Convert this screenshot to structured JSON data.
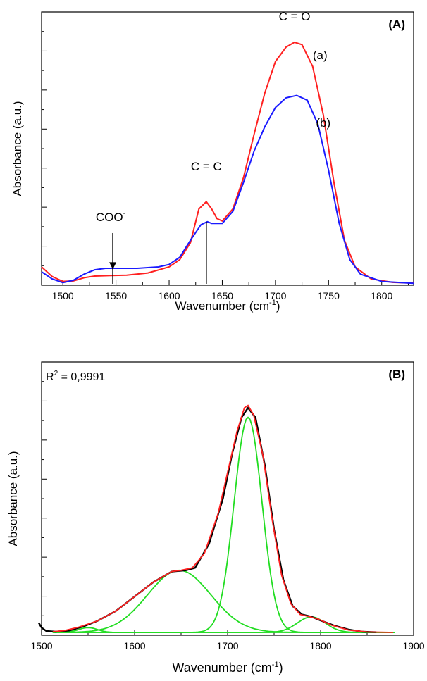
{
  "chart_data": [
    {
      "type": "line",
      "panel_label": "(A)",
      "xlabel": "Wavenumber (cm",
      "xlabel_sup": "-1",
      "xlabel_end": ")",
      "ylabel": "Absorbance (a.u.)",
      "xlim": [
        1480,
        1830
      ],
      "ylim": [
        0,
        1.0
      ],
      "x_ticks": [
        1500,
        1550,
        1600,
        1650,
        1700,
        1750,
        1800
      ],
      "x_tick_labels": [
        "1500",
        "1550",
        "1600",
        "1650",
        "1700",
        "1750",
        "1800"
      ],
      "y_tick_labels": false,
      "grid": false,
      "colors": {
        "a": "#ff2020",
        "b": "#1a1aff"
      },
      "series": [
        {
          "name": "(a)",
          "color": "#ff2020",
          "points": [
            [
              1480,
              0.07
            ],
            [
              1490,
              0.03
            ],
            [
              1500,
              0.01
            ],
            [
              1510,
              0.012
            ],
            [
              1520,
              0.025
            ],
            [
              1530,
              0.032
            ],
            [
              1545,
              0.034
            ],
            [
              1560,
              0.036
            ],
            [
              1580,
              0.045
            ],
            [
              1600,
              0.07
            ],
            [
              1610,
              0.1
            ],
            [
              1620,
              0.17
            ],
            [
              1628,
              0.31
            ],
            [
              1635,
              0.34
            ],
            [
              1640,
              0.31
            ],
            [
              1645,
              0.27
            ],
            [
              1650,
              0.26
            ],
            [
              1660,
              0.31
            ],
            [
              1670,
              0.44
            ],
            [
              1680,
              0.62
            ],
            [
              1690,
              0.79
            ],
            [
              1700,
              0.92
            ],
            [
              1710,
              0.98
            ],
            [
              1718,
              1.0
            ],
            [
              1725,
              0.99
            ],
            [
              1735,
              0.9
            ],
            [
              1745,
              0.7
            ],
            [
              1755,
              0.42
            ],
            [
              1765,
              0.18
            ],
            [
              1775,
              0.07
            ],
            [
              1790,
              0.02
            ],
            [
              1810,
              0.006
            ],
            [
              1830,
              0.003
            ]
          ]
        },
        {
          "name": "(b)",
          "color": "#1a1aff",
          "points": [
            [
              1480,
              0.05
            ],
            [
              1490,
              0.02
            ],
            [
              1500,
              0.005
            ],
            [
              1510,
              0.015
            ],
            [
              1520,
              0.04
            ],
            [
              1530,
              0.058
            ],
            [
              1540,
              0.064
            ],
            [
              1550,
              0.064
            ],
            [
              1570,
              0.064
            ],
            [
              1590,
              0.07
            ],
            [
              1600,
              0.08
            ],
            [
              1610,
              0.11
            ],
            [
              1620,
              0.18
            ],
            [
              1630,
              0.245
            ],
            [
              1636,
              0.257
            ],
            [
              1640,
              0.25
            ],
            [
              1650,
              0.25
            ],
            [
              1660,
              0.3
            ],
            [
              1670,
              0.42
            ],
            [
              1680,
              0.55
            ],
            [
              1690,
              0.65
            ],
            [
              1700,
              0.73
            ],
            [
              1710,
              0.77
            ],
            [
              1720,
              0.78
            ],
            [
              1730,
              0.76
            ],
            [
              1740,
              0.66
            ],
            [
              1750,
              0.47
            ],
            [
              1760,
              0.25
            ],
            [
              1770,
              0.1
            ],
            [
              1780,
              0.04
            ],
            [
              1800,
              0.01
            ],
            [
              1830,
              0.002
            ]
          ]
        }
      ],
      "annotations": [
        {
          "text": "C = O",
          "x": 1718,
          "y": 1.09
        },
        {
          "text": "(a)",
          "x": 1742,
          "y": 0.93
        },
        {
          "text": "(b)",
          "x": 1745,
          "y": 0.65
        },
        {
          "text": "C = C",
          "x": 1635,
          "y": 0.47
        },
        {
          "text": "COO",
          "sup": "-",
          "x": 1545,
          "y": 0.26
        }
      ],
      "markers": [
        {
          "name": "coo-arrow",
          "x": 1547,
          "y_start": 0.21,
          "y_end": 0.06
        },
        {
          "name": "coo-line",
          "x": 1547,
          "y_start": 0.0,
          "y_end": 0.064
        },
        {
          "name": "cc-line",
          "x": 1635,
          "y_start": 0.0,
          "y_end": 0.257
        }
      ]
    },
    {
      "type": "line",
      "panel_label": "(B)",
      "fit_label": "R",
      "fit_label_sup": "2",
      "fit_label_value": " = 0,9991",
      "xlabel": "Wavenumber (cm",
      "xlabel_sup": "-1",
      "xlabel_end": ")",
      "ylabel": "Absorbance (a.u.)",
      "xlim": [
        1500,
        1900
      ],
      "ylim": [
        0,
        1.02
      ],
      "x_ticks": [
        1500,
        1600,
        1700,
        1800,
        1900
      ],
      "x_tick_labels": [
        "1500",
        "1600",
        "1700",
        "1800",
        "1900"
      ],
      "y_tick_labels": false,
      "grid": false,
      "colors": {
        "measured": "#000000",
        "fit": "#ff2020",
        "component": "#22dd22"
      },
      "components": [
        {
          "center": 1550,
          "amp": 0.02,
          "sigma": 10
        },
        {
          "center": 1648,
          "amp": 0.26,
          "sigma": 34
        },
        {
          "center": 1722,
          "amp": 0.9,
          "sigma": 15
        },
        {
          "center": 1790,
          "amp": 0.065,
          "sigma": 15
        }
      ],
      "measured": [
        [
          1497,
          0.04
        ],
        [
          1500,
          0.02
        ],
        [
          1505,
          0.006
        ],
        [
          1515,
          0.003
        ],
        [
          1530,
          0.008
        ],
        [
          1545,
          0.025
        ],
        [
          1560,
          0.048
        ],
        [
          1580,
          0.09
        ],
        [
          1600,
          0.15
        ],
        [
          1620,
          0.21
        ],
        [
          1640,
          0.255
        ],
        [
          1655,
          0.26
        ],
        [
          1665,
          0.27
        ],
        [
          1680,
          0.37
        ],
        [
          1695,
          0.56
        ],
        [
          1705,
          0.75
        ],
        [
          1715,
          0.9
        ],
        [
          1722,
          0.94
        ],
        [
          1730,
          0.9
        ],
        [
          1740,
          0.7
        ],
        [
          1750,
          0.43
        ],
        [
          1760,
          0.22
        ],
        [
          1770,
          0.11
        ],
        [
          1780,
          0.075
        ],
        [
          1790,
          0.066
        ],
        [
          1800,
          0.05
        ],
        [
          1815,
          0.028
        ],
        [
          1830,
          0.012
        ],
        [
          1845,
          0.003
        ],
        [
          1860,
          0.001
        ]
      ],
      "fit": [
        [
          1512,
          0.003
        ],
        [
          1525,
          0.008
        ],
        [
          1540,
          0.022
        ],
        [
          1550,
          0.035
        ],
        [
          1560,
          0.048
        ],
        [
          1580,
          0.09
        ],
        [
          1600,
          0.15
        ],
        [
          1620,
          0.21
        ],
        [
          1640,
          0.255
        ],
        [
          1650,
          0.26
        ],
        [
          1662,
          0.27
        ],
        [
          1675,
          0.33
        ],
        [
          1690,
          0.5
        ],
        [
          1700,
          0.67
        ],
        [
          1710,
          0.84
        ],
        [
          1718,
          0.94
        ],
        [
          1722,
          0.95
        ],
        [
          1728,
          0.91
        ],
        [
          1738,
          0.74
        ],
        [
          1748,
          0.47
        ],
        [
          1758,
          0.24
        ],
        [
          1768,
          0.12
        ],
        [
          1778,
          0.075
        ],
        [
          1788,
          0.066
        ],
        [
          1798,
          0.055
        ],
        [
          1812,
          0.03
        ],
        [
          1830,
          0.01
        ],
        [
          1850,
          0.002
        ],
        [
          1878,
          0.0
        ]
      ]
    }
  ]
}
